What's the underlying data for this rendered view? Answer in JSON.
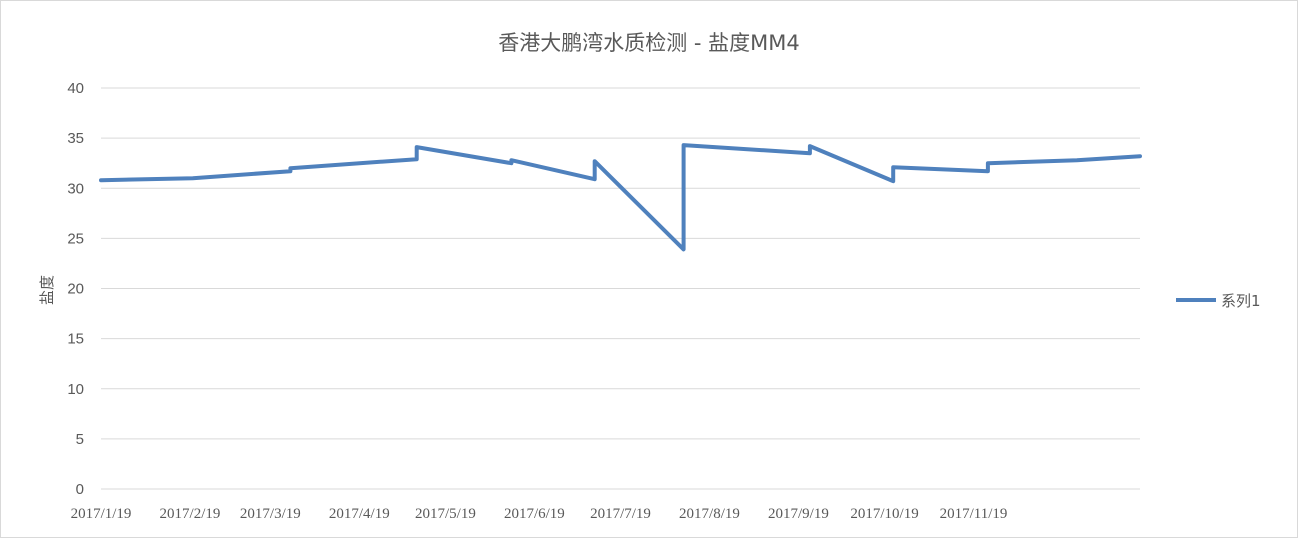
{
  "chart_data": {
    "type": "line",
    "title": "香港大鹏湾水质检测 - 盐度MM4",
    "ylabel": "盐度",
    "xlabel": "",
    "ylim": [
      0,
      40
    ],
    "yticks": [
      0,
      5,
      10,
      15,
      20,
      25,
      30,
      35,
      40
    ],
    "x_tick_labels": [
      "2017/1/19",
      "2017/2/19",
      "2017/3/19",
      "2017/4/19",
      "2017/5/19",
      "2017/6/19",
      "2017/7/19",
      "2017/8/19",
      "2017/9/19",
      "2017/10/19",
      "2017/11/19"
    ],
    "grid": true,
    "legend_position": "right",
    "series": [
      {
        "name": "系列1",
        "color": "#4f81bd",
        "points": [
          {
            "date": "2017-01-19",
            "value": 30.8
          },
          {
            "date": "2017-02-20",
            "value": 31.0
          },
          {
            "date": "2017-03-26",
            "value": 31.7
          },
          {
            "date": "2017-03-26",
            "value": 32.0
          },
          {
            "date": "2017-05-09",
            "value": 32.9
          },
          {
            "date": "2017-05-09",
            "value": 34.1
          },
          {
            "date": "2017-06-11",
            "value": 32.5
          },
          {
            "date": "2017-06-11",
            "value": 32.8
          },
          {
            "date": "2017-07-10",
            "value": 30.9
          },
          {
            "date": "2017-07-10",
            "value": 32.7
          },
          {
            "date": "2017-08-10",
            "value": 23.9
          },
          {
            "date": "2017-08-10",
            "value": 34.3
          },
          {
            "date": "2017-09-23",
            "value": 33.5
          },
          {
            "date": "2017-09-23",
            "value": 34.2
          },
          {
            "date": "2017-10-22",
            "value": 30.7
          },
          {
            "date": "2017-10-22",
            "value": 32.1
          },
          {
            "date": "2017-11-24",
            "value": 31.7
          },
          {
            "date": "2017-11-24",
            "value": 32.5
          },
          {
            "date": "2017-12-25",
            "value": 32.8
          },
          {
            "date": "2018-01-16",
            "value": 33.2
          }
        ]
      }
    ]
  }
}
